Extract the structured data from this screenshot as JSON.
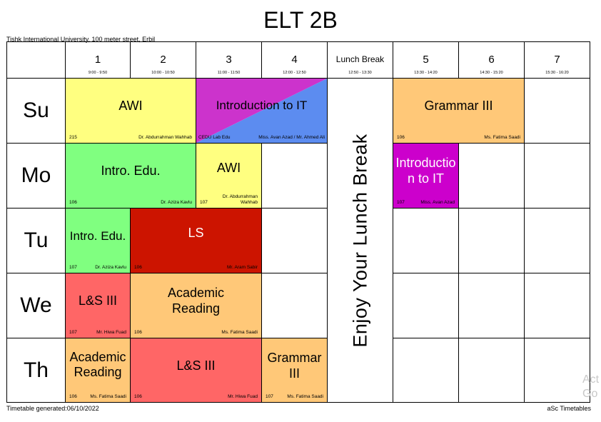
{
  "title": "ELT 2B",
  "address": "Tishk International University, 100 meter street, Erbil",
  "footer_left": "Timetable generated:06/10/2022",
  "footer_right": "aSc Timetables",
  "watermark": "Act\nGo t",
  "periods": [
    {
      "num": "1",
      "time": "9:00 - 9:50"
    },
    {
      "num": "2",
      "time": "10:00 - 10:50"
    },
    {
      "num": "3",
      "time": "11:00 - 11:50"
    },
    {
      "num": "4",
      "time": "12:00 - 12:50"
    },
    {
      "num": "Lunch Break",
      "time": "12:50 - 13:30"
    },
    {
      "num": "5",
      "time": "13:30 - 14:20"
    },
    {
      "num": "6",
      "time": "14:30 - 15:20"
    },
    {
      "num": "7",
      "time": "15:30 - 16:20"
    }
  ],
  "days": [
    "Su",
    "Mo",
    "Tu",
    "We",
    "Th"
  ],
  "lunch_text": "Enjoy Your Lunch Break",
  "classes": {
    "su_awi": {
      "subject": "AWI",
      "room": "215",
      "teacher": "Dr. Abdurrahman Wahhab",
      "color": "#ffff80"
    },
    "su_intro_it": {
      "subject": "Introduction to IT",
      "room": "CEDU Lab Edu",
      "teacher": "Miss. Avan Azad / Mr. Ahmed Ali",
      "color_a": "#cc33cc",
      "color_b": "#5c8cf0"
    },
    "su_grammar": {
      "subject": "Grammar III",
      "room": "106",
      "teacher": "Ms. Fatima Saadi",
      "color": "#ffc878"
    },
    "mo_intro_edu": {
      "subject": "Intro. Edu.",
      "room": "106",
      "teacher": "Dr. Aziza Kavlu",
      "color": "#80ff80"
    },
    "mo_awi": {
      "subject": "AWI",
      "room": "107",
      "teacher": "Dr. Abdurrahman Wahhab",
      "color": "#ffff80"
    },
    "mo_intro_it": {
      "subject": "Introduction to IT",
      "room": "107",
      "teacher": "Miss. Avan Azad",
      "color": "#cc00cc"
    },
    "tu_intro_edu": {
      "subject": "Intro. Edu.",
      "room": "107",
      "teacher": "Dr. Aziza Kavlu",
      "color": "#80ff80"
    },
    "tu_ls": {
      "subject": "LS",
      "room": "106",
      "teacher": "Mr. Aram Sabir",
      "color": "#cc1400"
    },
    "we_ls3": {
      "subject": "L&S III",
      "room": "107",
      "teacher": "Mr. Hiwa Fuad",
      "color": "#ff6666"
    },
    "we_academic": {
      "subject": "Academic Reading",
      "room": "106",
      "teacher": "Ms. Fatima Saadi",
      "color": "#ffc878"
    },
    "th_academic": {
      "subject": "Academic Reading",
      "room": "106",
      "teacher": "Ms. Fatima Saadi",
      "color": "#ffc878"
    },
    "th_ls3": {
      "subject": "L&S III",
      "room": "106",
      "teacher": "Mr. Hiwa Fuad",
      "color": "#ff6666"
    },
    "th_grammar": {
      "subject": "Grammar III",
      "room": "107",
      "teacher": "Ms. Fatima Saadi",
      "color": "#ffc878"
    }
  }
}
